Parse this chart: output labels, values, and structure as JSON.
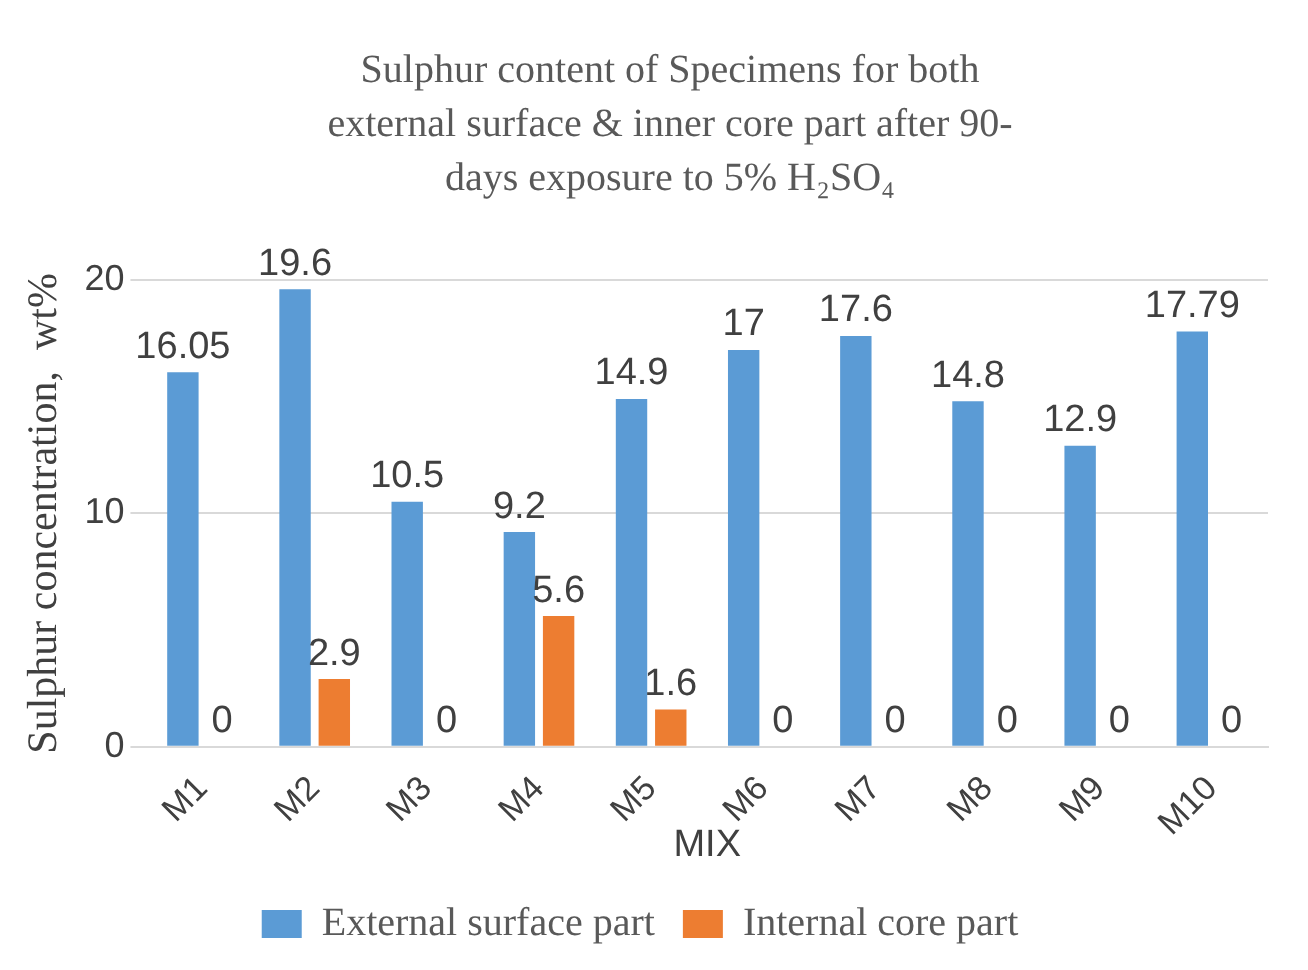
{
  "chart_data": {
    "type": "bar",
    "title": "Sulphur content of Specimens for both external  surface & inner core part after 90-days exposure to 5% H₂SO₄",
    "xlabel": "MIX",
    "ylabel": "Sulphur concentration,  wt%",
    "categories": [
      "M1",
      "M2",
      "M3",
      "M4",
      "M5",
      "M6",
      "M7",
      "M8",
      "M9",
      "M10"
    ],
    "series": [
      {
        "name": "External surface part",
        "color": "#5b9bd5",
        "values": [
          16.05,
          19.6,
          10.5,
          9.2,
          14.9,
          17,
          17.6,
          14.8,
          12.9,
          17.79
        ]
      },
      {
        "name": "Internal core part",
        "color": "#ed7d31",
        "values": [
          0,
          2.9,
          0,
          5.6,
          1.6,
          0,
          0,
          0,
          0,
          0
        ]
      }
    ],
    "ylim": [
      0,
      20
    ],
    "yticks": [
      0,
      10,
      20
    ],
    "grid": "y",
    "legend": "bottom",
    "data_labels": true
  }
}
